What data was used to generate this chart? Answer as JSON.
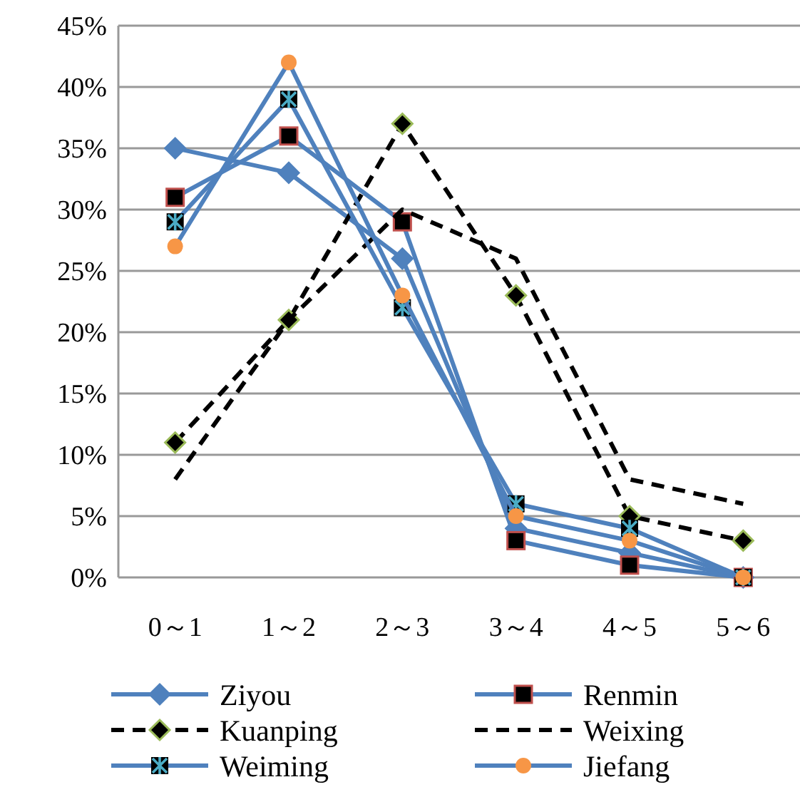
{
  "chart_data": {
    "type": "line",
    "categories": [
      "0～1",
      "1～2",
      "2～3",
      "3～4",
      "4～5",
      "5～6"
    ],
    "series": [
      {
        "name": "Ziyou",
        "color": "#4f81bd",
        "marker": "diamond",
        "line_style": "solid",
        "values": [
          35,
          33,
          26,
          4,
          2,
          0
        ]
      },
      {
        "name": "Renmin",
        "color": "#4f81bd",
        "marker": "square",
        "line_style": "solid",
        "values": [
          31,
          36,
          29,
          3,
          1,
          0
        ]
      },
      {
        "name": "Kuanping",
        "color": "#000000",
        "marker": "diamond",
        "line_style": "dashed",
        "values": [
          11,
          21,
          37,
          23,
          5,
          3
        ]
      },
      {
        "name": "Weixing",
        "color": "#000000",
        "marker": "none",
        "line_style": "dashed",
        "values": [
          8,
          21,
          30,
          26,
          8,
          6
        ]
      },
      {
        "name": "Weiming",
        "color": "#4f81bd",
        "marker": "cross",
        "line_style": "solid",
        "values": [
          29,
          39,
          22,
          6,
          4,
          0
        ]
      },
      {
        "name": "Jiefang",
        "color": "#4f81bd",
        "marker": "circle",
        "line_style": "solid",
        "values": [
          27,
          42,
          23,
          5,
          3,
          0
        ]
      }
    ],
    "ylim": [
      0,
      45
    ],
    "yticks": [
      {
        "value": 0,
        "label": "0%"
      },
      {
        "value": 5,
        "label": "5%"
      },
      {
        "value": 10,
        "label": "10%"
      },
      {
        "value": 15,
        "label": "15%"
      },
      {
        "value": 20,
        "label": "20%"
      },
      {
        "value": 25,
        "label": "25%"
      },
      {
        "value": 30,
        "label": "30%"
      },
      {
        "value": 35,
        "label": "35%"
      },
      {
        "value": 40,
        "label": "40%"
      },
      {
        "value": 45,
        "label": "45%"
      }
    ],
    "grid": "y",
    "legend": "bottom"
  }
}
